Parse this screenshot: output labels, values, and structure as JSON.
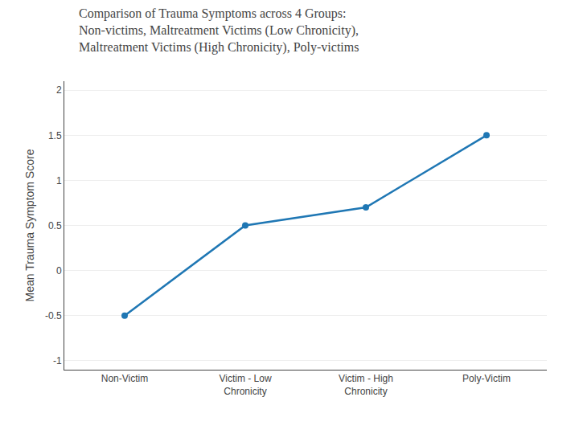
{
  "chart_data": {
    "type": "line",
    "title": "Comparison of Trauma Symptoms across 4 Groups:\nNon-victims, Maltreatment Victims (Low Chronicity),\nMaltreatment Victims (High Chronicity), Poly-victims",
    "categories": [
      "Non-Victim",
      "Victim - Low\nChronicity",
      "Victim - High\nChronicity",
      "Poly-Victim"
    ],
    "values": [
      -0.5,
      0.5,
      0.7,
      1.5
    ],
    "ylabel": "Mean Trauma Symptom Score",
    "ylim": [
      -1.1,
      2.1
    ],
    "yticks": [
      -1,
      -0.5,
      0,
      0.5,
      1,
      1.5,
      2
    ],
    "grid": true,
    "marker": "circle",
    "line_style": "solid"
  }
}
